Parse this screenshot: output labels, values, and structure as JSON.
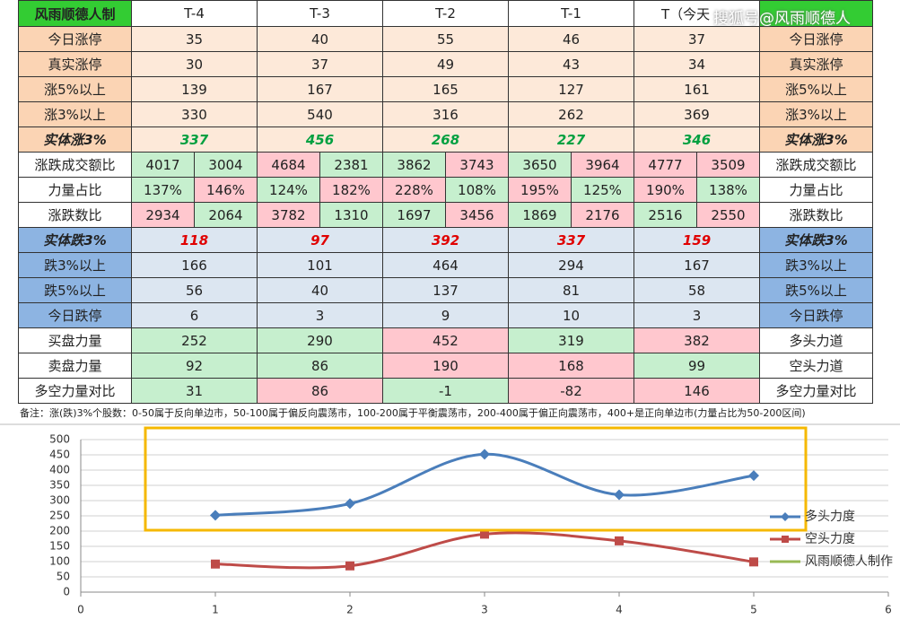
{
  "watermark": "搜狐号@风雨顺德人",
  "table": {
    "header": [
      "风雨顺德人制",
      "T-4",
      "T-3",
      "T-2",
      "T-1",
      "T（今天"
    ],
    "header_color": "#33cc33",
    "rows": [
      {
        "label": "今日涨停",
        "right": "今日涨停",
        "label_color": "#fbd4b4",
        "cell_color": "#fde9d9",
        "cells": [
          {
            "value": "35"
          },
          {
            "value": "40"
          },
          {
            "value": "55"
          },
          {
            "value": "46"
          },
          {
            "value": "37"
          }
        ]
      },
      {
        "label": "真实涨停",
        "right": "真实涨停",
        "label_color": "#fbd4b4",
        "cell_color": "#fde9d9",
        "cells": [
          {
            "value": "30"
          },
          {
            "value": "37"
          },
          {
            "value": "49"
          },
          {
            "value": "43"
          },
          {
            "value": "34"
          }
        ]
      },
      {
        "label": "涨5%以上",
        "right": "涨5%以上",
        "label_color": "#fbd4b4",
        "cell_color": "#fde9d9",
        "cells": [
          {
            "value": "139"
          },
          {
            "value": "167"
          },
          {
            "value": "165"
          },
          {
            "value": "127"
          },
          {
            "value": "161"
          }
        ]
      },
      {
        "label": "涨3%以上",
        "right": "涨3%以上",
        "label_color": "#fbd4b4",
        "cell_color": "#fde9d9",
        "cells": [
          {
            "value": "330"
          },
          {
            "value": "540"
          },
          {
            "value": "316"
          },
          {
            "value": "262"
          },
          {
            "value": "369"
          }
        ]
      },
      {
        "label": "实体涨3%",
        "right": "实体涨3%",
        "label_color": "#fbd4b4",
        "cell_color": "#fde9d9",
        "bold_italic": true,
        "value_color": "#00a040",
        "cells": [
          {
            "value": "337"
          },
          {
            "value": "456"
          },
          {
            "value": "268"
          },
          {
            "value": "227"
          },
          {
            "value": "346"
          }
        ]
      },
      {
        "label": "涨跌成交额比",
        "right": "涨跌成交额比",
        "label_color": "#ffffff",
        "cells": [
          {
            "values": [
              "4017",
              "3004"
            ],
            "colors": [
              "#c6efce",
              "#c6efce"
            ]
          },
          {
            "values": [
              "4684",
              "2381"
            ],
            "colors": [
              "#ffc7ce",
              "#c6efce"
            ]
          },
          {
            "values": [
              "3862",
              "3743"
            ],
            "colors": [
              "#c6efce",
              "#ffc7ce"
            ]
          },
          {
            "values": [
              "3650",
              "3964"
            ],
            "colors": [
              "#c6efce",
              "#ffc7ce"
            ]
          },
          {
            "values": [
              "4777",
              "3509"
            ],
            "colors": [
              "#ffc7ce",
              "#ffc7ce"
            ]
          }
        ]
      },
      {
        "label": "力量占比",
        "right": "力量占比",
        "label_color": "#ffffff",
        "cells": [
          {
            "values": [
              "137%",
              "146%"
            ],
            "colors": [
              "#c6efce",
              "#ffc7ce"
            ]
          },
          {
            "values": [
              "124%",
              "182%"
            ],
            "colors": [
              "#c6efce",
              "#ffc7ce"
            ]
          },
          {
            "values": [
              "228%",
              "108%"
            ],
            "colors": [
              "#ffc7ce",
              "#c6efce"
            ]
          },
          {
            "values": [
              "195%",
              "125%"
            ],
            "colors": [
              "#ffc7ce",
              "#c6efce"
            ]
          },
          {
            "values": [
              "190%",
              "138%"
            ],
            "colors": [
              "#ffc7ce",
              "#c6efce"
            ]
          }
        ]
      },
      {
        "label": "涨跌数比",
        "right": "涨跌数比",
        "label_color": "#ffffff",
        "cells": [
          {
            "values": [
              "2934",
              "2064"
            ],
            "colors": [
              "#ffc7ce",
              "#c6efce"
            ]
          },
          {
            "values": [
              "3782",
              "1310"
            ],
            "colors": [
              "#ffc7ce",
              "#c6efce"
            ]
          },
          {
            "values": [
              "1697",
              "3456"
            ],
            "colors": [
              "#c6efce",
              "#ffc7ce"
            ]
          },
          {
            "values": [
              "1869",
              "2176"
            ],
            "colors": [
              "#c6efce",
              "#ffc7ce"
            ]
          },
          {
            "values": [
              "2516",
              "2550"
            ],
            "colors": [
              "#c6efce",
              "#ffc7ce"
            ]
          }
        ]
      },
      {
        "label": "实体跌3%",
        "right": "实体跌3%",
        "label_color": "#8db4e2",
        "cell_color": "#dce6f1",
        "bold_italic": true,
        "value_color": "#e00000",
        "cells": [
          {
            "value": "118"
          },
          {
            "value": "97"
          },
          {
            "value": "392"
          },
          {
            "value": "337"
          },
          {
            "value": "159"
          }
        ]
      },
      {
        "label": "跌3%以上",
        "right": "跌3%以上",
        "label_color": "#8db4e2",
        "cell_color": "#dce6f1",
        "cells": [
          {
            "value": "166"
          },
          {
            "value": "101"
          },
          {
            "value": "464"
          },
          {
            "value": "294"
          },
          {
            "value": "167"
          }
        ]
      },
      {
        "label": "跌5%以上",
        "right": "跌5%以上",
        "label_color": "#8db4e2",
        "cell_color": "#dce6f1",
        "cells": [
          {
            "value": "56"
          },
          {
            "value": "40"
          },
          {
            "value": "137"
          },
          {
            "value": "81"
          },
          {
            "value": "58"
          }
        ]
      },
      {
        "label": "今日跌停",
        "right": "今日跌停",
        "label_color": "#8db4e2",
        "cell_color": "#dce6f1",
        "cells": [
          {
            "value": "6"
          },
          {
            "value": "3"
          },
          {
            "value": "9"
          },
          {
            "value": "10"
          },
          {
            "value": "3"
          }
        ]
      },
      {
        "label": "买盘力量",
        "right": "多头力道",
        "label_color": "#ffffff",
        "cells": [
          {
            "value": "252",
            "color": "#c6efce"
          },
          {
            "value": "290",
            "color": "#c6efce"
          },
          {
            "value": "452",
            "color": "#ffc7ce"
          },
          {
            "value": "319",
            "color": "#c6efce"
          },
          {
            "value": "382",
            "color": "#ffc7ce"
          }
        ]
      },
      {
        "label": "卖盘力量",
        "right": "空头力道",
        "label_color": "#ffffff",
        "cells": [
          {
            "value": "92",
            "color": "#c6efce"
          },
          {
            "value": "86",
            "color": "#c6efce"
          },
          {
            "value": "190",
            "color": "#ffc7ce"
          },
          {
            "value": "168",
            "color": "#ffc7ce"
          },
          {
            "value": "99",
            "color": "#c6efce"
          }
        ]
      },
      {
        "label": "多空力量对比",
        "right": "多空力量对比",
        "label_color": "#ffffff",
        "cells": [
          {
            "value": "31",
            "color": "#c6efce"
          },
          {
            "value": "86",
            "color": "#ffc7ce"
          },
          {
            "value": "-1",
            "color": "#c6efce"
          },
          {
            "value": "-82",
            "color": "#ffc7ce"
          },
          {
            "value": "146",
            "color": "#ffc7ce"
          }
        ]
      }
    ],
    "note": "备注：涨(跌)3%个股数：0-50属于反向单边市，50-100属于偏反向震荡市，100-200属于平衡震荡市，200-400属于偏正向震荡市，400+是正向单边市(力量占比为50-200区间)"
  },
  "chart_data": {
    "type": "line",
    "x": [
      1,
      2,
      3,
      4,
      5
    ],
    "series": [
      {
        "name": "多头力度",
        "color": "#4a7ebb",
        "marker": "diamond",
        "values": [
          252,
          290,
          452,
          319,
          382
        ]
      },
      {
        "name": "空头力度",
        "color": "#be4b48",
        "marker": "square",
        "values": [
          92,
          86,
          190,
          168,
          99
        ]
      },
      {
        "name": "风雨顺德人制作",
        "color": "#98b954",
        "values": [
          null,
          null,
          null,
          null,
          null
        ]
      }
    ],
    "xlim": [
      0,
      6
    ],
    "xticks": [
      0,
      1,
      2,
      3,
      4,
      5,
      6
    ],
    "ylim": [
      0,
      500
    ],
    "yticks": [
      0,
      50,
      100,
      150,
      200,
      250,
      300,
      350,
      400,
      450,
      500
    ],
    "grid": true,
    "legend": "right",
    "smooth": true,
    "highlight_color": "#f5b800"
  }
}
